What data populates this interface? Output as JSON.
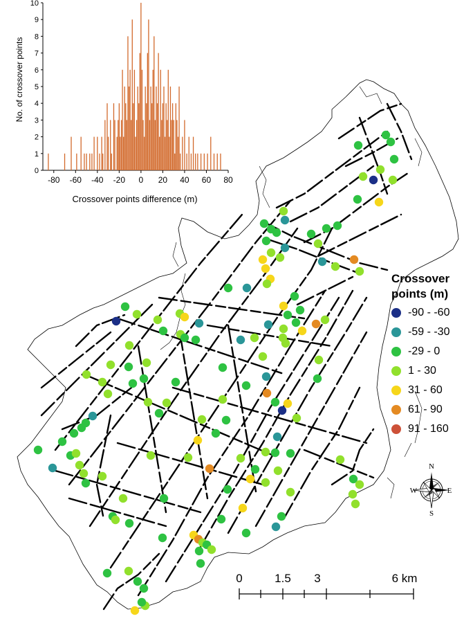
{
  "histogram": {
    "ylabel": "No. of crossover points",
    "xlabel": "Crossover points difference (m)",
    "x_ticks": [
      "-80",
      "-60",
      "-40",
      "-20",
      "0",
      "20",
      "40",
      "60",
      "80"
    ],
    "y_ticks": [
      "0",
      "1",
      "2",
      "3",
      "4",
      "5",
      "6",
      "7",
      "8",
      "9",
      "10"
    ],
    "bar_color": "#d2692b"
  },
  "chart_data": {
    "type": "bar",
    "title": "",
    "xlabel": "Crossover points difference (m)",
    "ylabel": "No. of crossover points",
    "xlim": [
      -90,
      80
    ],
    "ylim": [
      0,
      10
    ],
    "x": [
      -85,
      -70,
      -64,
      -59,
      -55,
      -52,
      -50,
      -47,
      -45,
      -43,
      -40,
      -38,
      -36,
      -35,
      -33,
      -31,
      -30,
      -28,
      -27,
      -25,
      -24,
      -22,
      -21,
      -20,
      -19,
      -18,
      -17,
      -16,
      -15,
      -14,
      -13,
      -12,
      -11,
      -10,
      -9,
      -8,
      -7,
      -6,
      -5,
      -4,
      -3,
      -2,
      -1,
      0,
      1,
      2,
      3,
      4,
      5,
      6,
      7,
      8,
      9,
      10,
      11,
      12,
      13,
      14,
      15,
      16,
      17,
      18,
      19,
      20,
      21,
      22,
      23,
      24,
      25,
      26,
      27,
      28,
      29,
      30,
      31,
      32,
      33,
      34,
      35,
      36,
      38,
      40,
      42,
      44,
      46,
      48,
      50,
      52,
      55,
      58,
      61,
      64,
      67,
      70,
      73
    ],
    "values": [
      1,
      1,
      2,
      1,
      2,
      1,
      1,
      1,
      1,
      2,
      2,
      1,
      2,
      1,
      3,
      4,
      2,
      3,
      1,
      4,
      3,
      2,
      3,
      4,
      2,
      3,
      6,
      2,
      5,
      4,
      3,
      8,
      5,
      6,
      3,
      9,
      4,
      6,
      2,
      3,
      5,
      4,
      7,
      10,
      6,
      3,
      2,
      5,
      4,
      7,
      9,
      3,
      5,
      4,
      6,
      8,
      3,
      5,
      4,
      7,
      2,
      6,
      3,
      4,
      5,
      2,
      4,
      3,
      6,
      2,
      5,
      3,
      4,
      3,
      1,
      4,
      3,
      2,
      5,
      1,
      2,
      3,
      1,
      2,
      1,
      2,
      1,
      1,
      1,
      1,
      1,
      2,
      1,
      1,
      1
    ]
  },
  "legend": {
    "title_line1": "Crossover",
    "title_line2": "points (m)",
    "items": [
      {
        "label": "-90 - -60",
        "color": "#1b2f87"
      },
      {
        "label": "-59 - -30",
        "color": "#2a9698"
      },
      {
        "label": "-29 - 0",
        "color": "#2ec242"
      },
      {
        "label": "1 - 30",
        "color": "#91e02c"
      },
      {
        "label": "31 - 60",
        "color": "#f6d61a"
      },
      {
        "label": "61 - 90",
        "color": "#e48a22"
      },
      {
        "label": "91 - 160",
        "color": "#cd5138"
      }
    ]
  },
  "scalebar": {
    "labels": [
      "0",
      "1.5",
      "3",
      "6 km"
    ]
  },
  "compass": {
    "n": "N",
    "s": "S",
    "e": "E",
    "w": "W",
    "icon": "compass-rose-icon"
  }
}
